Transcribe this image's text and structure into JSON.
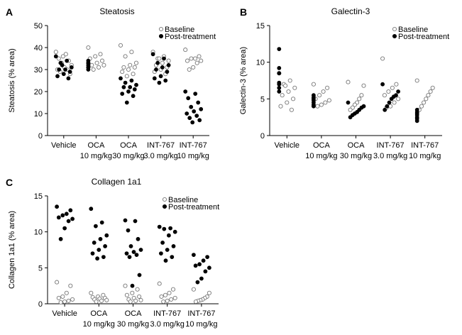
{
  "chart_data": [
    {
      "panel": "A",
      "type": "scatter",
      "title": "Steatosis",
      "ylabel": "Steatosis (% area)",
      "ylim": [
        0,
        50
      ],
      "yticks": [
        0,
        10,
        20,
        30,
        40,
        50
      ],
      "categories": [
        "Vehicle",
        "OCA\n10 mg/kg",
        "OCA\n30 mg/kg",
        "INT-767\n3.0 mg/kg",
        "INT-767\n10 mg/kg"
      ],
      "legend": "top-right",
      "series": [
        {
          "name": "Baseline",
          "marker": "open-circle",
          "values": [
            [
              38,
              37,
              35,
              34,
              33,
              32,
              31,
              30,
              30,
              29,
              28,
              36
            ],
            [
              40,
              37,
              36,
              35,
              34,
              33,
              32,
              32,
              31,
              30
            ],
            [
              41,
              38,
              36,
              33,
              32,
              31,
              31,
              30,
              29,
              28,
              27
            ],
            [
              38,
              36,
              35,
              34,
              33,
              32,
              31,
              30,
              29,
              28,
              35
            ],
            [
              39,
              36,
              35,
              35,
              34,
              34,
              33,
              31,
              30
            ]
          ]
        },
        {
          "name": "Post-treatment",
          "marker": "filled-circle",
          "values": [
            [
              36,
              34,
              33,
              31,
              30,
              30,
              29,
              28,
              27,
              26,
              32
            ],
            [
              34,
              33,
              32,
              31,
              31,
              30,
              33
            ],
            [
              26,
              25,
              24,
              23,
              22,
              22,
              21,
              20,
              19,
              18,
              15
            ],
            [
              37,
              35,
              33,
              32,
              31,
              30,
              29,
              27,
              26,
              25,
              24
            ],
            [
              20,
              19,
              17,
              15,
              13,
              12,
              11,
              10,
              9,
              8,
              7,
              6
            ]
          ]
        }
      ]
    },
    {
      "panel": "B",
      "type": "scatter",
      "title": "Galectin-3",
      "ylabel": "Galectin-3 (% area)",
      "ylim": [
        0,
        15
      ],
      "yticks": [
        0,
        5,
        10,
        15
      ],
      "categories": [
        "Vehicle",
        "OCA\n10 mg/kg",
        "OCA\n30 mg/kg",
        "INT-767\n3.0 mg/kg",
        "INT-767\n10 mg/kg"
      ],
      "legend": "top-right",
      "series": [
        {
          "name": "Baseline",
          "marker": "open-circle",
          "values": [
            [
              8.5,
              7.5,
              7.0,
              6.5,
              6.0,
              5.5,
              5.0,
              4.5,
              4.0,
              3.5,
              6.8
            ],
            [
              7.0,
              6.5,
              6.0,
              5.5,
              5.0,
              4.8,
              4.5,
              4.2,
              4.0
            ],
            [
              7.3,
              6.8,
              5.5,
              5.0,
              4.5,
              4.2,
              3.8,
              3.5
            ],
            [
              10.5,
              7.0,
              6.5,
              6.0,
              5.5,
              5.0,
              4.5,
              4.0,
              3.8
            ],
            [
              7.5,
              6.5,
              6.0,
              5.5,
              5.0,
              4.5,
              4.0,
              3.5
            ]
          ]
        },
        {
          "name": "Post-treatment",
          "marker": "filled-circle",
          "values": [
            [
              11.8,
              9.2,
              8.5,
              7.2,
              7.0,
              6.5,
              6.0
            ],
            [
              5.5,
              5.2,
              5.0,
              4.8,
              4.5,
              4.2,
              4.0
            ],
            [
              4.5,
              4.0,
              3.8,
              3.5,
              3.2,
              3.0,
              2.8,
              2.5
            ],
            [
              7.0,
              6.0,
              5.5,
              5.3,
              5.0,
              4.5,
              4.0,
              3.5
            ],
            [
              3.5,
              3.2,
              3.0,
              2.8,
              2.5,
              2.3,
              2.0
            ]
          ]
        }
      ]
    },
    {
      "panel": "C",
      "type": "scatter",
      "title": "Collagen 1a1",
      "ylabel": "Collagen 1a1 (% area)",
      "ylim": [
        0,
        15
      ],
      "yticks": [
        0,
        5,
        10,
        15
      ],
      "categories": [
        "Vehicle",
        "OCA\n10 mg/kg",
        "OCA\n30 mg/kg",
        "INT-767\n3.0 mg/kg",
        "INT-767\n10 mg/kg"
      ],
      "legend": "top-right",
      "series": [
        {
          "name": "Baseline",
          "marker": "open-circle",
          "values": [
            [
              3.0,
              2.5,
              1.5,
              1.0,
              0.8,
              0.6,
              0.4,
              0.3,
              0.2
            ],
            [
              1.5,
              1.2,
              1.0,
              0.9,
              0.8,
              0.7,
              0.6,
              0.5,
              0.4,
              0.3
            ],
            [
              2.5,
              2.0,
              1.5,
              1.2,
              1.0,
              0.8,
              0.6,
              0.5,
              0.4,
              0.3
            ],
            [
              2.8,
              2.0,
              1.5,
              1.2,
              1.0,
              0.8,
              0.6,
              0.4,
              0.3
            ],
            [
              2.0,
              1.5,
              1.0,
              0.8,
              0.6,
              0.5,
              0.4,
              0.3
            ]
          ]
        },
        {
          "name": "Post-treatment",
          "marker": "filled-circle",
          "values": [
            [
              13.5,
              13.0,
              12.5,
              12.3,
              12.0,
              11.8,
              11.5,
              10.5,
              9.0
            ],
            [
              13.2,
              11.3,
              10.8,
              9.5,
              9.0,
              8.5,
              8.0,
              7.5,
              7.0,
              6.5,
              6.3
            ],
            [
              11.6,
              11.5,
              10.2,
              9.0,
              8.0,
              7.5,
              7.2,
              7.0,
              6.8,
              6.5,
              4.0,
              2.5
            ],
            [
              10.7,
              10.5,
              10.4,
              10.0,
              9.5,
              8.5,
              8.0,
              7.5,
              7.0,
              6.5,
              6.0
            ],
            [
              6.8,
              6.5,
              6.0,
              5.5,
              5.3,
              5.0,
              4.5,
              3.5,
              3.0
            ]
          ]
        }
      ]
    }
  ]
}
